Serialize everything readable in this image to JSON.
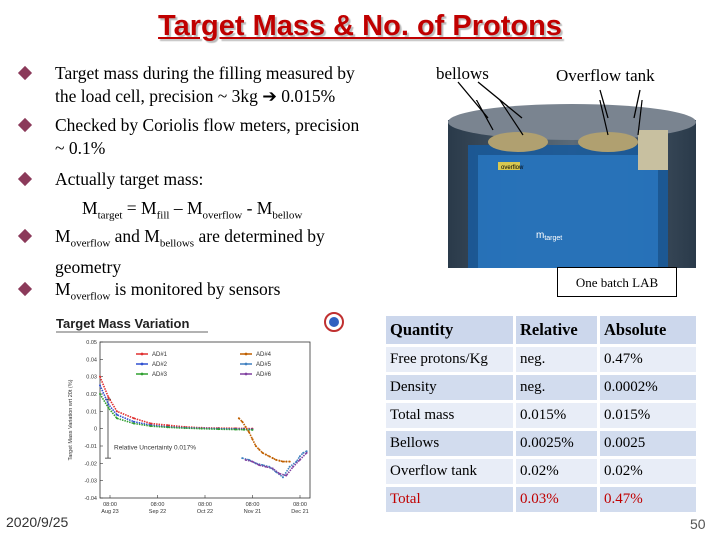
{
  "title": "Target Mass & No. of Protons",
  "bullets": [
    {
      "lines": [
        "Target mass during the filling measured by",
        "the load cell,  precision ~ 3kg ➔ 0.015%"
      ]
    },
    {
      "lines": [
        "Checked by Coriolis flow meters, precision",
        "~ 0.1%"
      ]
    },
    {
      "lines": [
        "Actually target mass:"
      ]
    },
    {
      "rich": true
    },
    {
      "rich2": true
    }
  ],
  "formula": {
    "M": "M",
    "target": "target",
    "eq": " = M",
    "fill": "fill",
    "minus": " – M",
    "overflow": "overflow",
    "dash": " - M",
    "bellow": "bellow"
  },
  "bullet4": {
    "m1": "M",
    "s1": "overflow",
    "t1": " and M",
    "s2": "bellows",
    "t2": " are determined by",
    "line2": "geometry"
  },
  "bullet5": {
    "m1": "M",
    "s1": "overflow",
    "t1": " is monitored by sensors"
  },
  "labels": {
    "bellows": "bellows",
    "overflow_tank": "Overflow tank",
    "one_batch": "One batch LAB"
  },
  "diagram_labels": {
    "overflow": "overflow",
    "target": "m",
    "target_sub": "target"
  },
  "chart_data": {
    "type": "line",
    "title": "Target Mass Variation",
    "ylabel": "Target Mass Variation wrt 20t (%)",
    "ylim": [
      -0.04,
      0.05
    ],
    "yticks": [
      "0.05",
      "0.04",
      "0.03",
      "0.02",
      "0.01",
      "0",
      "-0.01",
      "-0.02",
      "-0.03",
      "-0.04"
    ],
    "xticks": [
      {
        "t": "08:00",
        "d": "Aug 23"
      },
      {
        "t": "08:00",
        "d": "Sep 22"
      },
      {
        "t": "08:00",
        "d": "Oct 22"
      },
      {
        "t": "08:00",
        "d": "Nov 21"
      },
      {
        "t": "08:00",
        "d": "Dec 21"
      }
    ],
    "legend": [
      "AD#1",
      "AD#2",
      "AD#3",
      "AD#4",
      "AD#5",
      "AD#6"
    ],
    "annotation": "Relative Uncertainty 0.017%",
    "colors": {
      "AD#1": "#e03030",
      "AD#2": "#3050d0",
      "AD#3": "#30a030",
      "AD#4": "#c06000",
      "AD#5": "#4080c0",
      "AD#6": "#8040a0"
    },
    "series": [
      {
        "name": "AD#1",
        "x": [
          0,
          5,
          10,
          20,
          30,
          40,
          50,
          60,
          70,
          80,
          85,
          90
        ],
        "y": [
          0.03,
          0.018,
          0.01,
          0.006,
          0.003,
          0.002,
          0.001,
          0.0005,
          0.0003,
          0.0002,
          0.0001,
          0.0
        ]
      },
      {
        "name": "AD#2",
        "x": [
          0,
          5,
          10,
          20,
          30,
          40,
          50,
          60,
          70,
          80,
          85,
          90
        ],
        "y": [
          0.025,
          0.014,
          0.008,
          0.004,
          0.002,
          0.001,
          0.0005,
          0.0002,
          0.0,
          -0.0002,
          -0.0003,
          -0.0004
        ]
      },
      {
        "name": "AD#3",
        "x": [
          0,
          5,
          10,
          20,
          30,
          40,
          50,
          60,
          70,
          80,
          85,
          90
        ],
        "y": [
          0.02,
          0.012,
          0.006,
          0.003,
          0.0015,
          0.0008,
          0.0003,
          0.0,
          -0.0003,
          -0.0005,
          -0.0006,
          -0.0007
        ]
      },
      {
        "name": "AD#4",
        "x": [
          82,
          84,
          86,
          88,
          90,
          92,
          94,
          96,
          98,
          100,
          102,
          104,
          106,
          108,
          110,
          112
        ],
        "y": [
          0.006,
          0.004,
          0.001,
          -0.002,
          -0.006,
          -0.01,
          -0.012,
          -0.014,
          -0.015,
          -0.016,
          -0.017,
          -0.018,
          -0.0185,
          -0.019,
          -0.019,
          -0.019
        ]
      },
      {
        "name": "AD#5",
        "x": [
          84,
          88,
          92,
          96,
          100,
          104,
          108,
          112,
          116,
          118,
          120,
          122
        ],
        "y": [
          -0.017,
          -0.018,
          -0.02,
          -0.021,
          -0.022,
          -0.025,
          -0.028,
          -0.022,
          -0.019,
          -0.016,
          -0.014,
          -0.013
        ]
      },
      {
        "name": "AD#6",
        "x": [
          86,
          90,
          94,
          98,
          102,
          106,
          110,
          114,
          118,
          122
        ],
        "y": [
          -0.018,
          -0.019,
          -0.021,
          -0.022,
          -0.023,
          -0.026,
          -0.027,
          -0.022,
          -0.018,
          -0.014
        ]
      }
    ]
  },
  "table": {
    "headers": [
      "Quantity",
      "Relative",
      "Absolute"
    ],
    "rows": [
      [
        "Free protons/Kg",
        "neg.",
        "0.47%"
      ],
      [
        "Density",
        "neg.",
        "0.0002%"
      ],
      [
        "Total mass",
        "0.015%",
        "0.015%"
      ],
      [
        "Bellows",
        "0.0025%",
        "0.0025"
      ],
      [
        "Overflow tank",
        "0.02%",
        "0.02%"
      ],
      [
        "Total",
        "0.03%",
        "0.47%"
      ]
    ]
  },
  "footer": {
    "date": "2020/9/25",
    "page": "50"
  },
  "colors": {
    "title": "#c00000",
    "bullet": "#8b3a5a",
    "total_row": "#c00000",
    "table_header": "#ccd7ec"
  }
}
